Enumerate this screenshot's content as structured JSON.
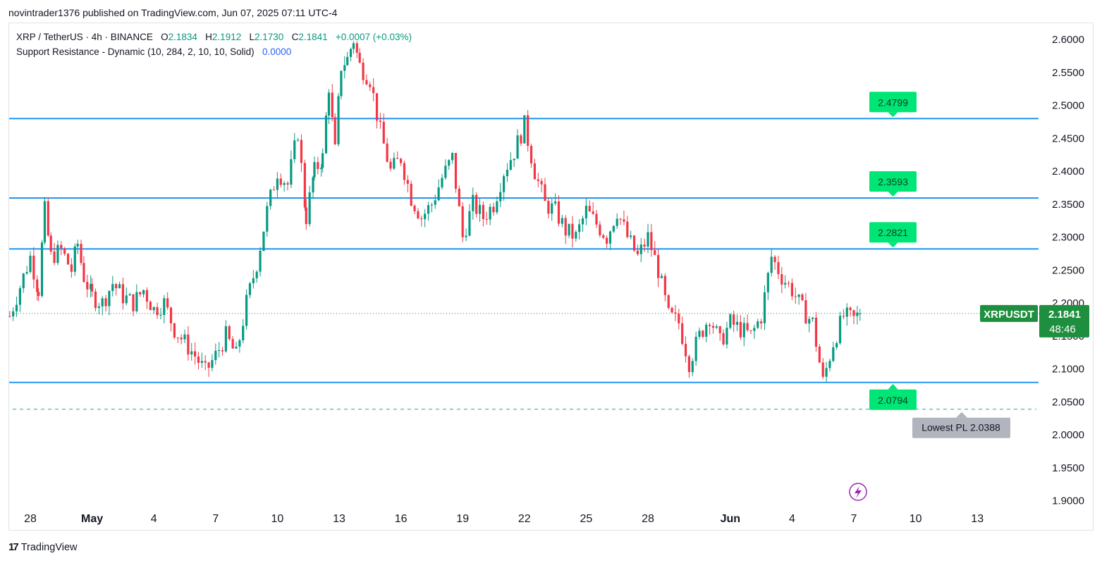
{
  "header": {
    "publisher_line": "novintrader1376 published on TradingView.com, Jun 07, 2025 07:11 UTC-4"
  },
  "legend": {
    "symbol": "XRP / TetherUS · 4h · BINANCE",
    "o_label": "O",
    "o_value": "2.1834",
    "h_label": "H",
    "h_value": "2.1912",
    "l_label": "L",
    "l_value": "2.1730",
    "c_label": "C",
    "c_value": "2.1841",
    "change": "+0.0007 (+0.03%)",
    "indicator": "Support Resistance - Dynamic (10, 284, 2, 10, 10, Solid)",
    "indicator_value": "0.0000"
  },
  "footer": {
    "brand": "TradingView",
    "logo_glyph": "17"
  },
  "colors": {
    "up": "#089981",
    "down": "#f23645",
    "level_line": "#2196f3",
    "label_green": "#00e676",
    "price_tag": "#1e8f3e",
    "grid_text": "#131722"
  },
  "chart_data": {
    "type": "candlestick",
    "symbol": "XRPUSDT",
    "timeframe": "4h",
    "last_price": "2.1841",
    "countdown": "48:46",
    "ylim": [
      1.9,
      2.62
    ],
    "y_ticks": [
      "2.6000",
      "2.5500",
      "2.5000",
      "2.4500",
      "2.4000",
      "2.3500",
      "2.3000",
      "2.2500",
      "2.2000",
      "2.1500",
      "2.1000",
      "2.0500",
      "2.0000",
      "1.9500",
      "1.9000"
    ],
    "x_ticks": [
      {
        "label": "28",
        "x": 0
      },
      {
        "label": "May",
        "x": 3
      },
      {
        "label": "4",
        "x": 6
      },
      {
        "label": "7",
        "x": 9
      },
      {
        "label": "10",
        "x": 12
      },
      {
        "label": "13",
        "x": 15
      },
      {
        "label": "16",
        "x": 18
      },
      {
        "label": "19",
        "x": 21
      },
      {
        "label": "22",
        "x": 24
      },
      {
        "label": "25",
        "x": 27
      },
      {
        "label": "28",
        "x": 30
      },
      {
        "label": "Jun",
        "x": 34
      },
      {
        "label": "4",
        "x": 37
      },
      {
        "label": "7",
        "x": 40
      },
      {
        "label": "10",
        "x": 43
      },
      {
        "label": "13",
        "x": 46
      }
    ],
    "x_range_days": [
      -1,
      49.6
    ],
    "levels": [
      {
        "value": 2.4799,
        "label": "2.4799",
        "pointer": "down"
      },
      {
        "value": 2.3593,
        "label": "2.3593",
        "pointer": "down"
      },
      {
        "value": 2.2821,
        "label": "2.2821",
        "pointer": "down"
      },
      {
        "value": 2.0794,
        "label": "2.0794",
        "pointer": "up"
      }
    ],
    "lowest_pl": {
      "value": 2.0388,
      "label": "Lowest PL 2.0388"
    },
    "series": [
      {
        "name": "XRPUSDT",
        "points": [
          [
            -1,
            2.18
          ],
          [
            0,
            2.27
          ],
          [
            0.4,
            2.22
          ],
          [
            0.7,
            2.34
          ],
          [
            1,
            2.27
          ],
          [
            1.5,
            2.28
          ],
          [
            2,
            2.25
          ],
          [
            2.3,
            2.29
          ],
          [
            2.6,
            2.24
          ],
          [
            3,
            2.21
          ],
          [
            3.5,
            2.2
          ],
          [
            4,
            2.23
          ],
          [
            4.5,
            2.21
          ],
          [
            5,
            2.2
          ],
          [
            5.5,
            2.22
          ],
          [
            6,
            2.19
          ],
          [
            6.5,
            2.2
          ],
          [
            7,
            2.16
          ],
          [
            7.5,
            2.14
          ],
          [
            8,
            2.12
          ],
          [
            8.5,
            2.095
          ],
          [
            9,
            2.12
          ],
          [
            9.5,
            2.15
          ],
          [
            10,
            2.12
          ],
          [
            10.5,
            2.2
          ],
          [
            11,
            2.26
          ],
          [
            11.5,
            2.34
          ],
          [
            12,
            2.4
          ],
          [
            12.5,
            2.38
          ],
          [
            13,
            2.46
          ],
          [
            13.4,
            2.33
          ],
          [
            13.8,
            2.4
          ],
          [
            14.2,
            2.42
          ],
          [
            14.5,
            2.53
          ],
          [
            14.8,
            2.43
          ],
          [
            15.1,
            2.56
          ],
          [
            15.4,
            2.57
          ],
          [
            15.7,
            2.6
          ],
          [
            16,
            2.56
          ],
          [
            16.5,
            2.54
          ],
          [
            17,
            2.46
          ],
          [
            17.5,
            2.4
          ],
          [
            18,
            2.42
          ],
          [
            18.5,
            2.36
          ],
          [
            19,
            2.33
          ],
          [
            19.5,
            2.35
          ],
          [
            20,
            2.39
          ],
          [
            20.5,
            2.42
          ],
          [
            21,
            2.3
          ],
          [
            21.5,
            2.35
          ],
          [
            22,
            2.33
          ],
          [
            22.5,
            2.35
          ],
          [
            23,
            2.4
          ],
          [
            23.5,
            2.43
          ],
          [
            24,
            2.47
          ],
          [
            24.5,
            2.4
          ],
          [
            25,
            2.35
          ],
          [
            25.5,
            2.34
          ],
          [
            26,
            2.31
          ],
          [
            26.5,
            2.3
          ],
          [
            27,
            2.34
          ],
          [
            27.5,
            2.32
          ],
          [
            28,
            2.3
          ],
          [
            28.5,
            2.34
          ],
          [
            29,
            2.3
          ],
          [
            29.5,
            2.27
          ],
          [
            30,
            2.3
          ],
          [
            30.5,
            2.25
          ],
          [
            31,
            2.18
          ],
          [
            31.5,
            2.17
          ],
          [
            32,
            2.11
          ],
          [
            32.5,
            2.15
          ],
          [
            33,
            2.18
          ],
          [
            33.5,
            2.14
          ],
          [
            34,
            2.17
          ],
          [
            34.5,
            2.16
          ],
          [
            35,
            2.15
          ],
          [
            35.5,
            2.18
          ],
          [
            36,
            2.27
          ],
          [
            36.5,
            2.24
          ],
          [
            37,
            2.22
          ],
          [
            37.5,
            2.19
          ],
          [
            38,
            2.17
          ],
          [
            38.5,
            2.08
          ],
          [
            39,
            2.14
          ],
          [
            39.5,
            2.18
          ],
          [
            40,
            2.175
          ],
          [
            40.3,
            2.1841
          ]
        ]
      }
    ]
  }
}
